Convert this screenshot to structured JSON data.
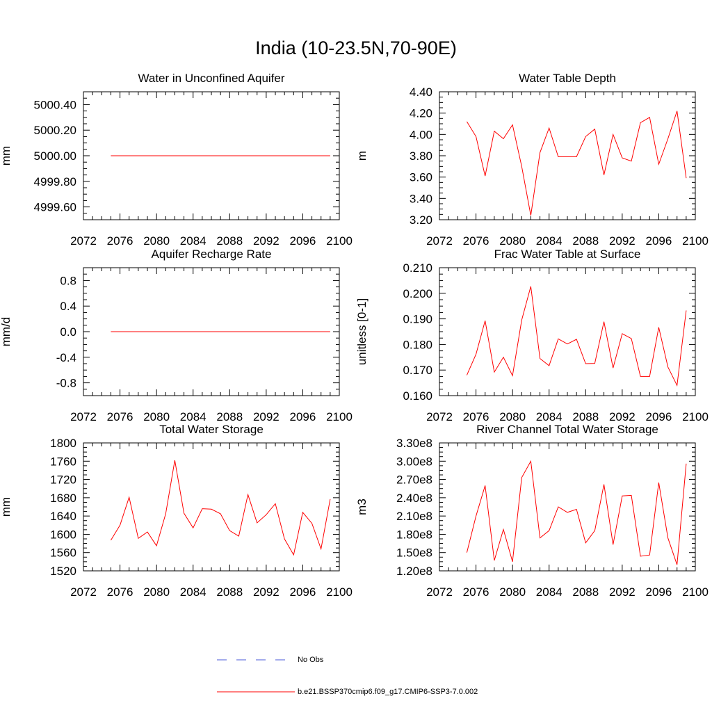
{
  "page_title": "India (10-23.5N,70-90E)",
  "legend": {
    "items": [
      {
        "label": "No Obs",
        "color": "#4a5ad8",
        "dash": true
      },
      {
        "label": "b.e21.BSSP370cmip6.f09_g17.CMIP6-SSP3-7.0.002",
        "color": "#ff0000",
        "dash": false
      }
    ]
  },
  "chart_data": [
    {
      "type": "line",
      "title": "Water in Unconfined Aquifer",
      "xlabel": "",
      "ylabel": "mm",
      "xlim": [
        2072,
        2100
      ],
      "ylim": [
        4999.5,
        5000.5
      ],
      "xticks": [
        "2072",
        "2076",
        "2080",
        "2084",
        "2088",
        "2092",
        "2096",
        "2100"
      ],
      "yticks": [
        "4999.60",
        "4999.80",
        "5000.00",
        "5000.20",
        "5000.40"
      ],
      "series": [
        {
          "color": "#ff0000",
          "x": [
            2075,
            2076,
            2077,
            2078,
            2079,
            2080,
            2081,
            2082,
            2083,
            2084,
            2085,
            2086,
            2087,
            2088,
            2089,
            2090,
            2091,
            2092,
            2093,
            2094,
            2095,
            2096,
            2097,
            2098,
            2099
          ],
          "values": [
            5000,
            5000,
            5000,
            5000,
            5000,
            5000,
            5000,
            5000,
            5000,
            5000,
            5000,
            5000,
            5000,
            5000,
            5000,
            5000,
            5000,
            5000,
            5000,
            5000,
            5000,
            5000,
            5000,
            5000,
            5000
          ]
        }
      ]
    },
    {
      "type": "line",
      "title": "Water Table Depth",
      "xlabel": "",
      "ylabel": "m",
      "xlim": [
        2072,
        2100
      ],
      "ylim": [
        3.2,
        4.4
      ],
      "xticks": [
        "2072",
        "2076",
        "2080",
        "2084",
        "2088",
        "2092",
        "2096",
        "2100"
      ],
      "yticks": [
        "3.20",
        "3.40",
        "3.60",
        "3.80",
        "4.00",
        "4.20",
        "4.40"
      ],
      "series": [
        {
          "color": "#ff0000",
          "x": [
            2075,
            2076,
            2077,
            2078,
            2079,
            2080,
            2081,
            2082,
            2083,
            2084,
            2085,
            2086,
            2087,
            2088,
            2089,
            2090,
            2091,
            2092,
            2093,
            2094,
            2095,
            2096,
            2097,
            2098,
            2099
          ],
          "values": [
            4.12,
            3.98,
            3.61,
            4.03,
            3.96,
            4.09,
            3.7,
            3.24,
            3.83,
            4.06,
            3.79,
            3.79,
            3.79,
            3.98,
            4.05,
            3.62,
            4.0,
            3.78,
            3.75,
            4.11,
            4.16,
            3.72,
            3.96,
            4.22,
            3.59
          ]
        }
      ]
    },
    {
      "type": "line",
      "title": "Aquifer Recharge Rate",
      "xlabel": "",
      "ylabel": "mm/d",
      "xlim": [
        2072,
        2100
      ],
      "ylim": [
        -1.0,
        1.0
      ],
      "xticks": [
        "2072",
        "2076",
        "2080",
        "2084",
        "2088",
        "2092",
        "2096",
        "2100"
      ],
      "yticks": [
        "-0.8",
        "-0.4",
        "0.0",
        "0.4",
        "0.8"
      ],
      "series": [
        {
          "color": "#ff0000",
          "x": [
            2075,
            2076,
            2077,
            2078,
            2079,
            2080,
            2081,
            2082,
            2083,
            2084,
            2085,
            2086,
            2087,
            2088,
            2089,
            2090,
            2091,
            2092,
            2093,
            2094,
            2095,
            2096,
            2097,
            2098,
            2099
          ],
          "values": [
            0,
            0,
            0,
            0,
            0,
            0,
            0,
            0,
            0,
            0,
            0,
            0,
            0,
            0,
            0,
            0,
            0,
            0,
            0,
            0,
            0,
            0,
            0,
            0,
            0
          ]
        }
      ]
    },
    {
      "type": "line",
      "title": "Frac Water Table at Surface",
      "xlabel": "",
      "ylabel": "unitless [0-1]",
      "xlim": [
        2072,
        2100
      ],
      "ylim": [
        0.16,
        0.21
      ],
      "xticks": [
        "2072",
        "2076",
        "2080",
        "2084",
        "2088",
        "2092",
        "2096",
        "2100"
      ],
      "yticks": [
        "0.160",
        "0.170",
        "0.180",
        "0.190",
        "0.200",
        "0.210"
      ],
      "series": [
        {
          "color": "#ff0000",
          "x": [
            2075,
            2076,
            2077,
            2078,
            2079,
            2080,
            2081,
            2082,
            2083,
            2084,
            2085,
            2086,
            2087,
            2088,
            2089,
            2090,
            2091,
            2092,
            2093,
            2094,
            2095,
            2096,
            2097,
            2098,
            2099
          ],
          "values": [
            0.168,
            0.1762,
            0.1893,
            0.1692,
            0.175,
            0.1678,
            0.1895,
            0.2027,
            0.1745,
            0.1717,
            0.1822,
            0.1802,
            0.182,
            0.1725,
            0.1726,
            0.1889,
            0.1708,
            0.1842,
            0.1823,
            0.1675,
            0.1675,
            0.1867,
            0.1712,
            0.164,
            0.1933
          ]
        }
      ]
    },
    {
      "type": "line",
      "title": "Total Water Storage",
      "xlabel": "",
      "ylabel": "mm",
      "xlim": [
        2072,
        2100
      ],
      "ylim": [
        1520,
        1800
      ],
      "xticks": [
        "2072",
        "2076",
        "2080",
        "2084",
        "2088",
        "2092",
        "2096",
        "2100"
      ],
      "yticks": [
        "1520",
        "1560",
        "1600",
        "1640",
        "1680",
        "1720",
        "1760",
        "1800"
      ],
      "series": [
        {
          "color": "#ff0000",
          "x": [
            2075,
            2076,
            2077,
            2078,
            2079,
            2080,
            2081,
            2082,
            2083,
            2084,
            2085,
            2086,
            2087,
            2088,
            2089,
            2090,
            2091,
            2092,
            2093,
            2094,
            2095,
            2096,
            2097,
            2098,
            2099
          ],
          "values": [
            1587,
            1620,
            1681,
            1591,
            1605,
            1575,
            1645,
            1762,
            1646,
            1614,
            1656,
            1655,
            1645,
            1608,
            1596,
            1687,
            1625,
            1643,
            1667,
            1590,
            1555,
            1648,
            1624,
            1568,
            1677
          ]
        }
      ]
    },
    {
      "type": "line",
      "title": "River Channel Total Water Storage",
      "xlabel": "",
      "ylabel": "m3",
      "xlim": [
        2072,
        2100
      ],
      "ylim": [
        120000000.0,
        330000000.0
      ],
      "xticks": [
        "2072",
        "2076",
        "2080",
        "2084",
        "2088",
        "2092",
        "2096",
        "2100"
      ],
      "yticks": [
        "1.20e8",
        "1.50e8",
        "1.80e8",
        "2.10e8",
        "2.40e8",
        "2.70e8",
        "3.00e8",
        "3.30e8"
      ],
      "series": [
        {
          "color": "#ff0000",
          "x": [
            2075,
            2076,
            2077,
            2078,
            2079,
            2080,
            2081,
            2082,
            2083,
            2084,
            2085,
            2086,
            2087,
            2088,
            2089,
            2090,
            2091,
            2092,
            2093,
            2094,
            2095,
            2096,
            2097,
            2098,
            2099
          ],
          "values": [
            150000000,
            210000000,
            260000000,
            137000000,
            188000000,
            135000000,
            273000000,
            300000000,
            174000000,
            186000000,
            225000000,
            216000000,
            221000000,
            166000000,
            186000000,
            262000000,
            163000000,
            243000000,
            244000000,
            144000000,
            146000000,
            265000000,
            174000000,
            130000000,
            296000000
          ]
        }
      ]
    }
  ]
}
